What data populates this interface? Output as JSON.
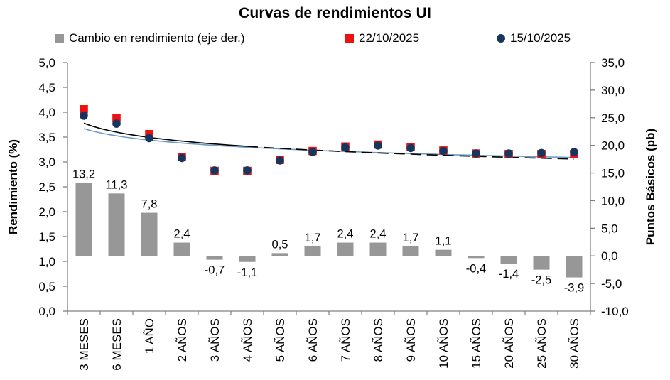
{
  "title": "Curvas de rendimientos UI",
  "legend": [
    {
      "label": "Cambio en rendimiento (eje der.)",
      "marker": "square",
      "color": "#979797"
    },
    {
      "label": "22/10/2025",
      "marker": "square",
      "color": "#EE1111"
    },
    {
      "label": "15/10/2025",
      "marker": "circle",
      "color": "#17365D"
    }
  ],
  "chart_data": {
    "type": "combo-bar-scatter",
    "title": "Curvas de rendimientos UI",
    "categories": [
      "3 MESES",
      "6 MESES",
      "1 AÑO",
      "2 AÑOS",
      "3 AÑOS",
      "4 AÑOS",
      "5 AÑOS",
      "6 AÑOS",
      "7 AÑOS",
      "8 AÑOS",
      "9 AÑOS",
      "10 AÑOS",
      "15 AÑOS",
      "20 AÑOS",
      "25 AÑOS",
      "30 AÑOS"
    ],
    "series": [
      {
        "name": "Cambio en rendimiento (eje der.)",
        "type": "bar",
        "axis": "right",
        "color": "#979797",
        "values": [
          13.2,
          11.3,
          7.8,
          2.4,
          -0.7,
          -1.1,
          0.5,
          1.7,
          2.4,
          2.4,
          1.7,
          1.1,
          -0.4,
          -1.4,
          -2.5,
          -3.9
        ],
        "labels": [
          "13,2",
          "11,3",
          "7,8",
          "2,4",
          "-0,7",
          "-1,1",
          "0,5",
          "1,7",
          "2,4",
          "2,4",
          "1,7",
          "1,1",
          "-0,4",
          "-1,4",
          "-2,5",
          "-3,9"
        ]
      },
      {
        "name": "22/10/2025",
        "type": "scatter",
        "marker": "square",
        "axis": "left",
        "color": "#EE1111",
        "values": [
          4.06,
          3.88,
          3.56,
          3.1,
          2.82,
          2.82,
          3.04,
          3.22,
          3.31,
          3.35,
          3.3,
          3.23,
          3.17,
          3.16,
          3.16,
          3.16
        ]
      },
      {
        "name": "15/10/2025",
        "type": "scatter",
        "marker": "circle",
        "axis": "left",
        "color": "#17365D",
        "values": [
          3.93,
          3.77,
          3.48,
          3.08,
          2.83,
          2.83,
          3.03,
          3.2,
          3.29,
          3.33,
          3.28,
          3.22,
          3.17,
          3.17,
          3.18,
          3.2
        ]
      }
    ],
    "trendlines": [
      {
        "series": "22/10/2025",
        "color": "#000000",
        "form": "log",
        "a": 3.78,
        "b": 0.26
      },
      {
        "series": "15/10/2025",
        "color": "#6D9BC4",
        "form": "log",
        "a": 3.67,
        "b": 0.209
      }
    ],
    "left_axis": {
      "title": "Rendimiento (%)",
      "min": 0,
      "max": 5,
      "step": 0.5,
      "tick_labels": [
        "5,0",
        "4,5",
        "4,0",
        "3,5",
        "3,0",
        "2,5",
        "2,0",
        "1,5",
        "1,0",
        "0,5",
        "0,0"
      ]
    },
    "right_axis": {
      "title": "Puntos Básicos (pb)",
      "min": -10,
      "max": 35,
      "step": 5,
      "tick_labels": [
        "35,0",
        "30,0",
        "25,0",
        "20,0",
        "15,0",
        "10,0",
        "5,0",
        "0,0",
        "-5,0",
        "-10,0"
      ]
    },
    "grid": false,
    "legend_position": "top",
    "axis_color": "#808080"
  }
}
